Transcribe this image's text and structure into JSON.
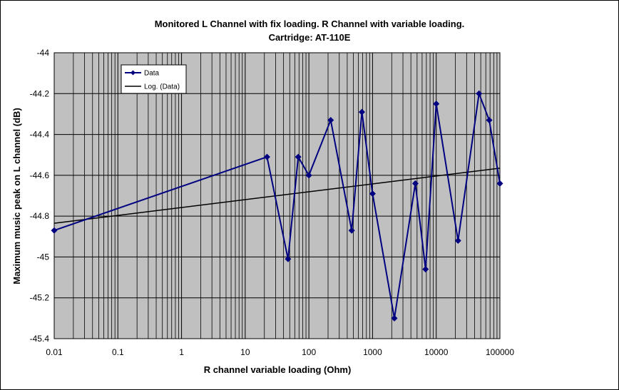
{
  "chart_data": {
    "type": "scatter",
    "title": "Monitored L Channel with fix loading.  R Channel with variable loading.",
    "subtitle": "Cartridge: AT-110E",
    "xlabel": "R channel variable loading (Ohm)",
    "ylabel": "Maximum music peak on L channel (dB)",
    "x_scale": "log",
    "xlim": [
      0.01,
      100000
    ],
    "ylim": [
      -45.4,
      -44
    ],
    "x_ticks": [
      "0.01",
      "0.1",
      "1",
      "10",
      "100",
      "1000",
      "10000",
      "100000"
    ],
    "y_ticks": [
      "-44",
      "-44.2",
      "-44.4",
      "-44.6",
      "-44.8",
      "-45",
      "-45.2",
      "-45.4"
    ],
    "grid": true,
    "legend_position": "top-left",
    "colors": {
      "plot_background": "#c0c0c0",
      "series": "#000080",
      "trend": "#000000",
      "grid": "#000000"
    },
    "series": [
      {
        "name": "Data",
        "x": [
          0.01,
          22,
          47,
          68,
          100,
          220,
          470,
          680,
          1000,
          2200,
          4700,
          6800,
          10000,
          22000,
          47000,
          68000,
          100000
        ],
        "y": [
          -44.87,
          -44.51,
          -45.01,
          -44.51,
          -44.6,
          -44.33,
          -44.87,
          -44.29,
          -44.69,
          -45.3,
          -44.64,
          -45.06,
          -44.25,
          -44.92,
          -44.2,
          -44.33,
          -44.64
        ]
      },
      {
        "name": "Log. (Data)",
        "trendline": "logarithmic",
        "x": [
          0.01,
          100000
        ],
        "y": [
          -44.835,
          -44.565
        ]
      }
    ]
  }
}
